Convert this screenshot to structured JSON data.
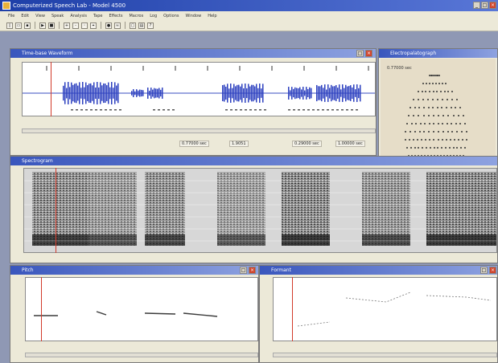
{
  "app": {
    "title": "Computerized Speech Lab - Model 4500",
    "menu": [
      "File",
      "Edit",
      "View",
      "Speak",
      "Analysis",
      "Tape",
      "Effects",
      "Macros",
      "Log",
      "Options",
      "Window",
      "Help"
    ],
    "toolbar_icons": [
      "new-icon",
      "open-icon",
      "save-icon",
      "play-icon",
      "stop-icon",
      "zoom-in-icon",
      "zoom-out-icon",
      "select-icon",
      "cursor-icon",
      "record-icon",
      "analyze-icon",
      "window-icon",
      "print-icon",
      "help-icon"
    ]
  },
  "windows": {
    "waveform": {
      "title": "Time-base Waveform"
    },
    "palate": {
      "title": "Electropalatograph",
      "readout": "0.77000 sec"
    },
    "spectrogram": {
      "title": "Spectrogram"
    },
    "pitch": {
      "title": "Pitch"
    },
    "formant": {
      "title": "Formant"
    }
  },
  "waveform_status": [
    "0.77000 sec",
    "1.9051",
    "0.29000 sec",
    "1.00000 sec"
  ],
  "colors": {
    "titlebar": "#1e3fa8",
    "cursor": "#d23a2a"
  }
}
